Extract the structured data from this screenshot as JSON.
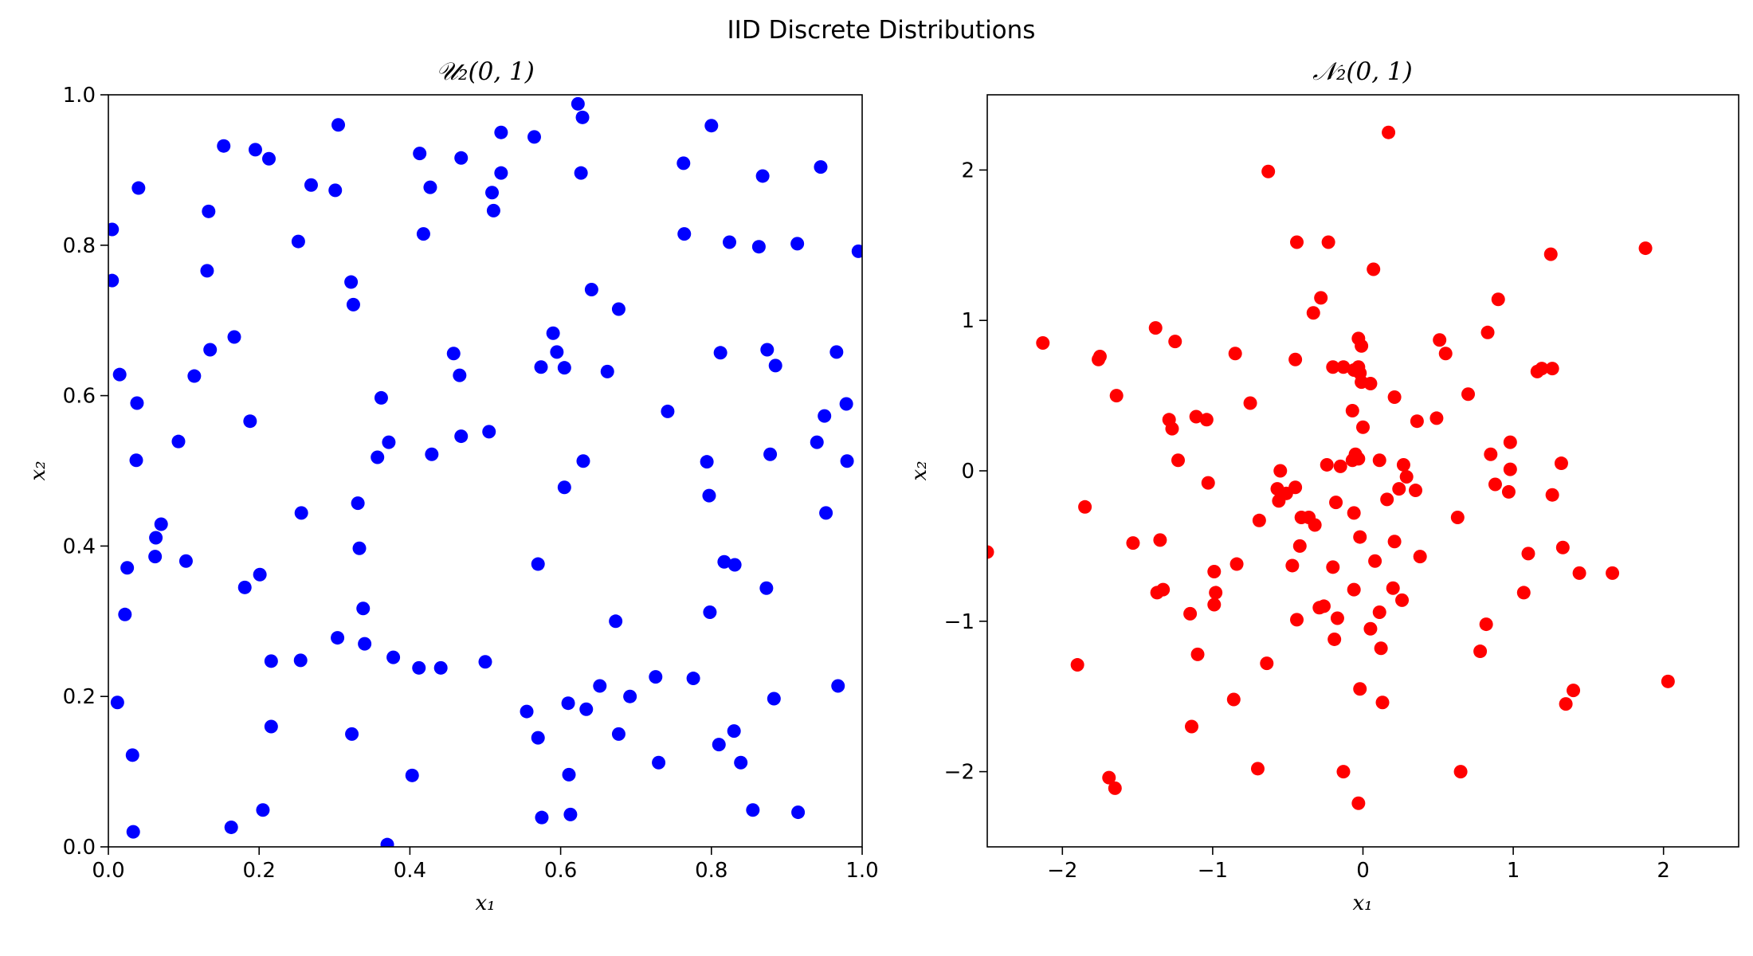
{
  "figure_title": "IID Discrete Distributions",
  "chart_data": [
    {
      "type": "scatter",
      "title": "𝒰₂(0, 1)",
      "xlabel": "x₁",
      "ylabel": "x₂",
      "xlim": [
        0,
        1
      ],
      "ylim": [
        0,
        1
      ],
      "xticks": [
        0.0,
        0.2,
        0.4,
        0.6,
        0.8,
        1.0
      ],
      "yticks": [
        0.0,
        0.2,
        0.4,
        0.6,
        0.8,
        1.0
      ],
      "xtick_labels": [
        "0.0",
        "0.2",
        "0.4",
        "0.6",
        "0.8",
        "1.0"
      ],
      "ytick_labels": [
        "0.0",
        "0.2",
        "0.4",
        "0.6",
        "0.8",
        "1.0"
      ],
      "color": "#0000ff",
      "grid": false,
      "points": [
        [
          0.005,
          0.821
        ],
        [
          0.005,
          0.753
        ],
        [
          0.015,
          0.628
        ],
        [
          0.04,
          0.876
        ],
        [
          0.038,
          0.59
        ],
        [
          0.037,
          0.514
        ],
        [
          0.025,
          0.371
        ],
        [
          0.022,
          0.309
        ],
        [
          0.012,
          0.192
        ],
        [
          0.032,
          0.122
        ],
        [
          0.033,
          0.02
        ],
        [
          0.07,
          0.429
        ],
        [
          0.063,
          0.411
        ],
        [
          0.062,
          0.386
        ],
        [
          0.093,
          0.539
        ],
        [
          0.103,
          0.38
        ],
        [
          0.114,
          0.626
        ],
        [
          0.131,
          0.766
        ],
        [
          0.133,
          0.845
        ],
        [
          0.135,
          0.661
        ],
        [
          0.153,
          0.932
        ],
        [
          0.167,
          0.678
        ],
        [
          0.163,
          0.026
        ],
        [
          0.181,
          0.345
        ],
        [
          0.188,
          0.566
        ],
        [
          0.195,
          0.927
        ],
        [
          0.201,
          0.362
        ],
        [
          0.205,
          0.049
        ],
        [
          0.213,
          0.915
        ],
        [
          0.216,
          0.247
        ],
        [
          0.216,
          0.16
        ],
        [
          0.252,
          0.805
        ],
        [
          0.255,
          0.248
        ],
        [
          0.256,
          0.444
        ],
        [
          0.269,
          0.88
        ],
        [
          0.301,
          0.873
        ],
        [
          0.305,
          0.96
        ],
        [
          0.304,
          0.278
        ],
        [
          0.322,
          0.751
        ],
        [
          0.325,
          0.721
        ],
        [
          0.323,
          0.15
        ],
        [
          0.331,
          0.457
        ],
        [
          0.333,
          0.397
        ],
        [
          0.338,
          0.317
        ],
        [
          0.34,
          0.27
        ],
        [
          0.357,
          0.518
        ],
        [
          0.362,
          0.597
        ],
        [
          0.372,
          0.538
        ],
        [
          0.37,
          0.003
        ],
        [
          0.378,
          0.252
        ],
        [
          0.403,
          0.095
        ],
        [
          0.413,
          0.922
        ],
        [
          0.412,
          0.238
        ],
        [
          0.418,
          0.815
        ],
        [
          0.427,
          0.877
        ],
        [
          0.429,
          0.522
        ],
        [
          0.441,
          0.238
        ],
        [
          0.458,
          0.656
        ],
        [
          0.466,
          0.627
        ],
        [
          0.468,
          0.916
        ],
        [
          0.468,
          0.546
        ],
        [
          0.5,
          0.246
        ],
        [
          0.505,
          0.552
        ],
        [
          0.509,
          0.87
        ],
        [
          0.511,
          0.846
        ],
        [
          0.521,
          0.95
        ],
        [
          0.521,
          0.896
        ],
        [
          0.555,
          0.18
        ],
        [
          0.565,
          0.944
        ],
        [
          0.57,
          0.376
        ],
        [
          0.57,
          0.145
        ],
        [
          0.574,
          0.638
        ],
        [
          0.575,
          0.039
        ],
        [
          0.59,
          0.683
        ],
        [
          0.595,
          0.658
        ],
        [
          0.605,
          0.637
        ],
        [
          0.605,
          0.478
        ],
        [
          0.61,
          0.191
        ],
        [
          0.611,
          0.096
        ],
        [
          0.613,
          0.043
        ],
        [
          0.623,
          0.988
        ],
        [
          0.627,
          0.896
        ],
        [
          0.629,
          0.97
        ],
        [
          0.63,
          0.513
        ],
        [
          0.634,
          0.183
        ],
        [
          0.641,
          0.741
        ],
        [
          0.652,
          0.214
        ],
        [
          0.662,
          0.632
        ],
        [
          0.673,
          0.3
        ],
        [
          0.677,
          0.715
        ],
        [
          0.677,
          0.15
        ],
        [
          0.692,
          0.2
        ],
        [
          0.726,
          0.226
        ],
        [
          0.73,
          0.112
        ],
        [
          0.742,
          0.579
        ],
        [
          0.763,
          0.909
        ],
        [
          0.764,
          0.815
        ],
        [
          0.776,
          0.224
        ],
        [
          0.794,
          0.512
        ],
        [
          0.797,
          0.467
        ],
        [
          0.798,
          0.312
        ],
        [
          0.8,
          0.959
        ],
        [
          0.81,
          0.136
        ],
        [
          0.812,
          0.657
        ],
        [
          0.817,
          0.379
        ],
        [
          0.824,
          0.804
        ],
        [
          0.831,
          0.375
        ],
        [
          0.83,
          0.154
        ],
        [
          0.839,
          0.112
        ],
        [
          0.855,
          0.049
        ],
        [
          0.863,
          0.798
        ],
        [
          0.868,
          0.892
        ],
        [
          0.874,
          0.661
        ],
        [
          0.873,
          0.344
        ],
        [
          0.878,
          0.522
        ],
        [
          0.883,
          0.197
        ],
        [
          0.885,
          0.64
        ],
        [
          0.914,
          0.802
        ],
        [
          0.915,
          0.046
        ],
        [
          0.94,
          0.538
        ],
        [
          0.945,
          0.904
        ],
        [
          0.95,
          0.573
        ],
        [
          0.952,
          0.444
        ],
        [
          0.966,
          0.658
        ],
        [
          0.968,
          0.214
        ],
        [
          0.979,
          0.589
        ],
        [
          0.98,
          0.513
        ],
        [
          0.995,
          0.792
        ]
      ]
    },
    {
      "type": "scatter",
      "title": "𝒩₂(0, 1)",
      "xlabel": "x₁",
      "ylabel": "x₂",
      "xlim": [
        -2.5,
        2.5
      ],
      "ylim": [
        -2.5,
        2.5
      ],
      "xticks": [
        -2,
        -1,
        0,
        1,
        2
      ],
      "yticks": [
        -2,
        -1,
        0,
        1,
        2
      ],
      "xtick_labels": [
        "−2",
        "−1",
        "0",
        "1",
        "2"
      ],
      "ytick_labels": [
        "−2",
        "−1",
        "0",
        "1",
        "2"
      ],
      "color": "#ff0000",
      "grid": false,
      "points": [
        [
          -2.5,
          -0.54
        ],
        [
          -2.13,
          0.85
        ],
        [
          -1.9,
          -1.29
        ],
        [
          -1.85,
          -0.24
        ],
        [
          -1.76,
          0.74
        ],
        [
          -1.75,
          0.76
        ],
        [
          -1.69,
          -2.04
        ],
        [
          -1.65,
          -2.11
        ],
        [
          -1.64,
          0.5
        ],
        [
          -1.53,
          -0.48
        ],
        [
          -1.38,
          0.95
        ],
        [
          -1.37,
          -0.81
        ],
        [
          -1.35,
          -0.46
        ],
        [
          -1.33,
          -0.79
        ],
        [
          -1.29,
          0.34
        ],
        [
          -1.27,
          0.28
        ],
        [
          -1.25,
          0.86
        ],
        [
          -1.23,
          0.07
        ],
        [
          -1.15,
          -0.95
        ],
        [
          -1.14,
          -1.7
        ],
        [
          -1.11,
          0.36
        ],
        [
          -1.1,
          -1.22
        ],
        [
          -1.04,
          0.34
        ],
        [
          -1.03,
          -0.08
        ],
        [
          -0.99,
          -0.67
        ],
        [
          -0.99,
          -0.89
        ],
        [
          -0.98,
          -0.81
        ],
        [
          -0.86,
          -1.52
        ],
        [
          -0.85,
          0.78
        ],
        [
          -0.84,
          -0.62
        ],
        [
          -0.75,
          0.45
        ],
        [
          -0.7,
          -1.98
        ],
        [
          -0.69,
          -0.33
        ],
        [
          -0.64,
          -1.28
        ],
        [
          -0.63,
          1.99
        ],
        [
          -0.57,
          -0.12
        ],
        [
          -0.55,
          0.0
        ],
        [
          -0.56,
          -0.2
        ],
        [
          -0.51,
          -0.15
        ],
        [
          -0.47,
          -0.63
        ],
        [
          -0.45,
          -0.11
        ],
        [
          -0.45,
          0.74
        ],
        [
          -0.44,
          -0.99
        ],
        [
          -0.44,
          1.52
        ],
        [
          -0.42,
          -0.5
        ],
        [
          -0.41,
          -0.31
        ],
        [
          -0.36,
          -0.31
        ],
        [
          -0.32,
          -0.36
        ],
        [
          -0.33,
          1.05
        ],
        [
          -0.29,
          -0.91
        ],
        [
          -0.28,
          1.15
        ],
        [
          -0.26,
          -0.9
        ],
        [
          -0.24,
          0.04
        ],
        [
          -0.23,
          1.52
        ],
        [
          -0.2,
          -0.64
        ],
        [
          -0.2,
          0.69
        ],
        [
          -0.19,
          -1.12
        ],
        [
          -0.18,
          -0.21
        ],
        [
          -0.17,
          -0.98
        ],
        [
          -0.15,
          0.03
        ],
        [
          -0.13,
          0.69
        ],
        [
          -0.13,
          -2.0
        ],
        [
          -0.07,
          0.07
        ],
        [
          -0.07,
          0.4
        ],
        [
          -0.06,
          -0.28
        ],
        [
          -0.06,
          0.67
        ],
        [
          -0.05,
          0.11
        ],
        [
          -0.06,
          -0.79
        ],
        [
          -0.03,
          0.69
        ],
        [
          -0.03,
          0.88
        ],
        [
          -0.02,
          0.65
        ],
        [
          -0.03,
          0.08
        ],
        [
          -0.03,
          -2.21
        ],
        [
          -0.02,
          -0.44
        ],
        [
          -0.02,
          -1.45
        ],
        [
          -0.01,
          0.83
        ],
        [
          -0.01,
          0.59
        ],
        [
          0.0,
          0.29
        ],
        [
          0.05,
          -1.05
        ],
        [
          0.05,
          0.58
        ],
        [
          0.07,
          1.34
        ],
        [
          0.08,
          -0.6
        ],
        [
          0.11,
          -0.94
        ],
        [
          0.11,
          0.07
        ],
        [
          0.12,
          -1.18
        ],
        [
          0.13,
          -1.54
        ],
        [
          0.16,
          -0.19
        ],
        [
          0.17,
          2.25
        ],
        [
          0.2,
          -0.78
        ],
        [
          0.21,
          0.49
        ],
        [
          0.21,
          -0.47
        ],
        [
          0.24,
          -0.12
        ],
        [
          0.27,
          0.04
        ],
        [
          0.26,
          -0.86
        ],
        [
          0.29,
          -0.04
        ],
        [
          0.35,
          -0.13
        ],
        [
          0.36,
          0.33
        ],
        [
          0.38,
          -0.57
        ],
        [
          0.49,
          0.35
        ],
        [
          0.51,
          0.87
        ],
        [
          0.55,
          0.78
        ],
        [
          0.63,
          -0.31
        ],
        [
          0.65,
          -2.0
        ],
        [
          0.7,
          0.51
        ],
        [
          0.78,
          -1.2
        ],
        [
          0.82,
          -1.02
        ],
        [
          0.83,
          0.92
        ],
        [
          0.85,
          0.11
        ],
        [
          0.88,
          -0.09
        ],
        [
          0.9,
          1.14
        ],
        [
          0.97,
          -0.14
        ],
        [
          0.98,
          0.01
        ],
        [
          0.98,
          0.19
        ],
        [
          1.07,
          -0.81
        ],
        [
          1.1,
          -0.55
        ],
        [
          1.16,
          0.66
        ],
        [
          1.19,
          0.68
        ],
        [
          1.25,
          1.44
        ],
        [
          1.26,
          0.68
        ],
        [
          1.26,
          -0.16
        ],
        [
          1.32,
          0.05
        ],
        [
          1.33,
          -0.51
        ],
        [
          1.35,
          -1.55
        ],
        [
          1.4,
          -1.46
        ],
        [
          1.44,
          -0.68
        ],
        [
          1.66,
          -0.68
        ],
        [
          1.88,
          1.48
        ],
        [
          2.03,
          -1.4
        ]
      ]
    }
  ]
}
